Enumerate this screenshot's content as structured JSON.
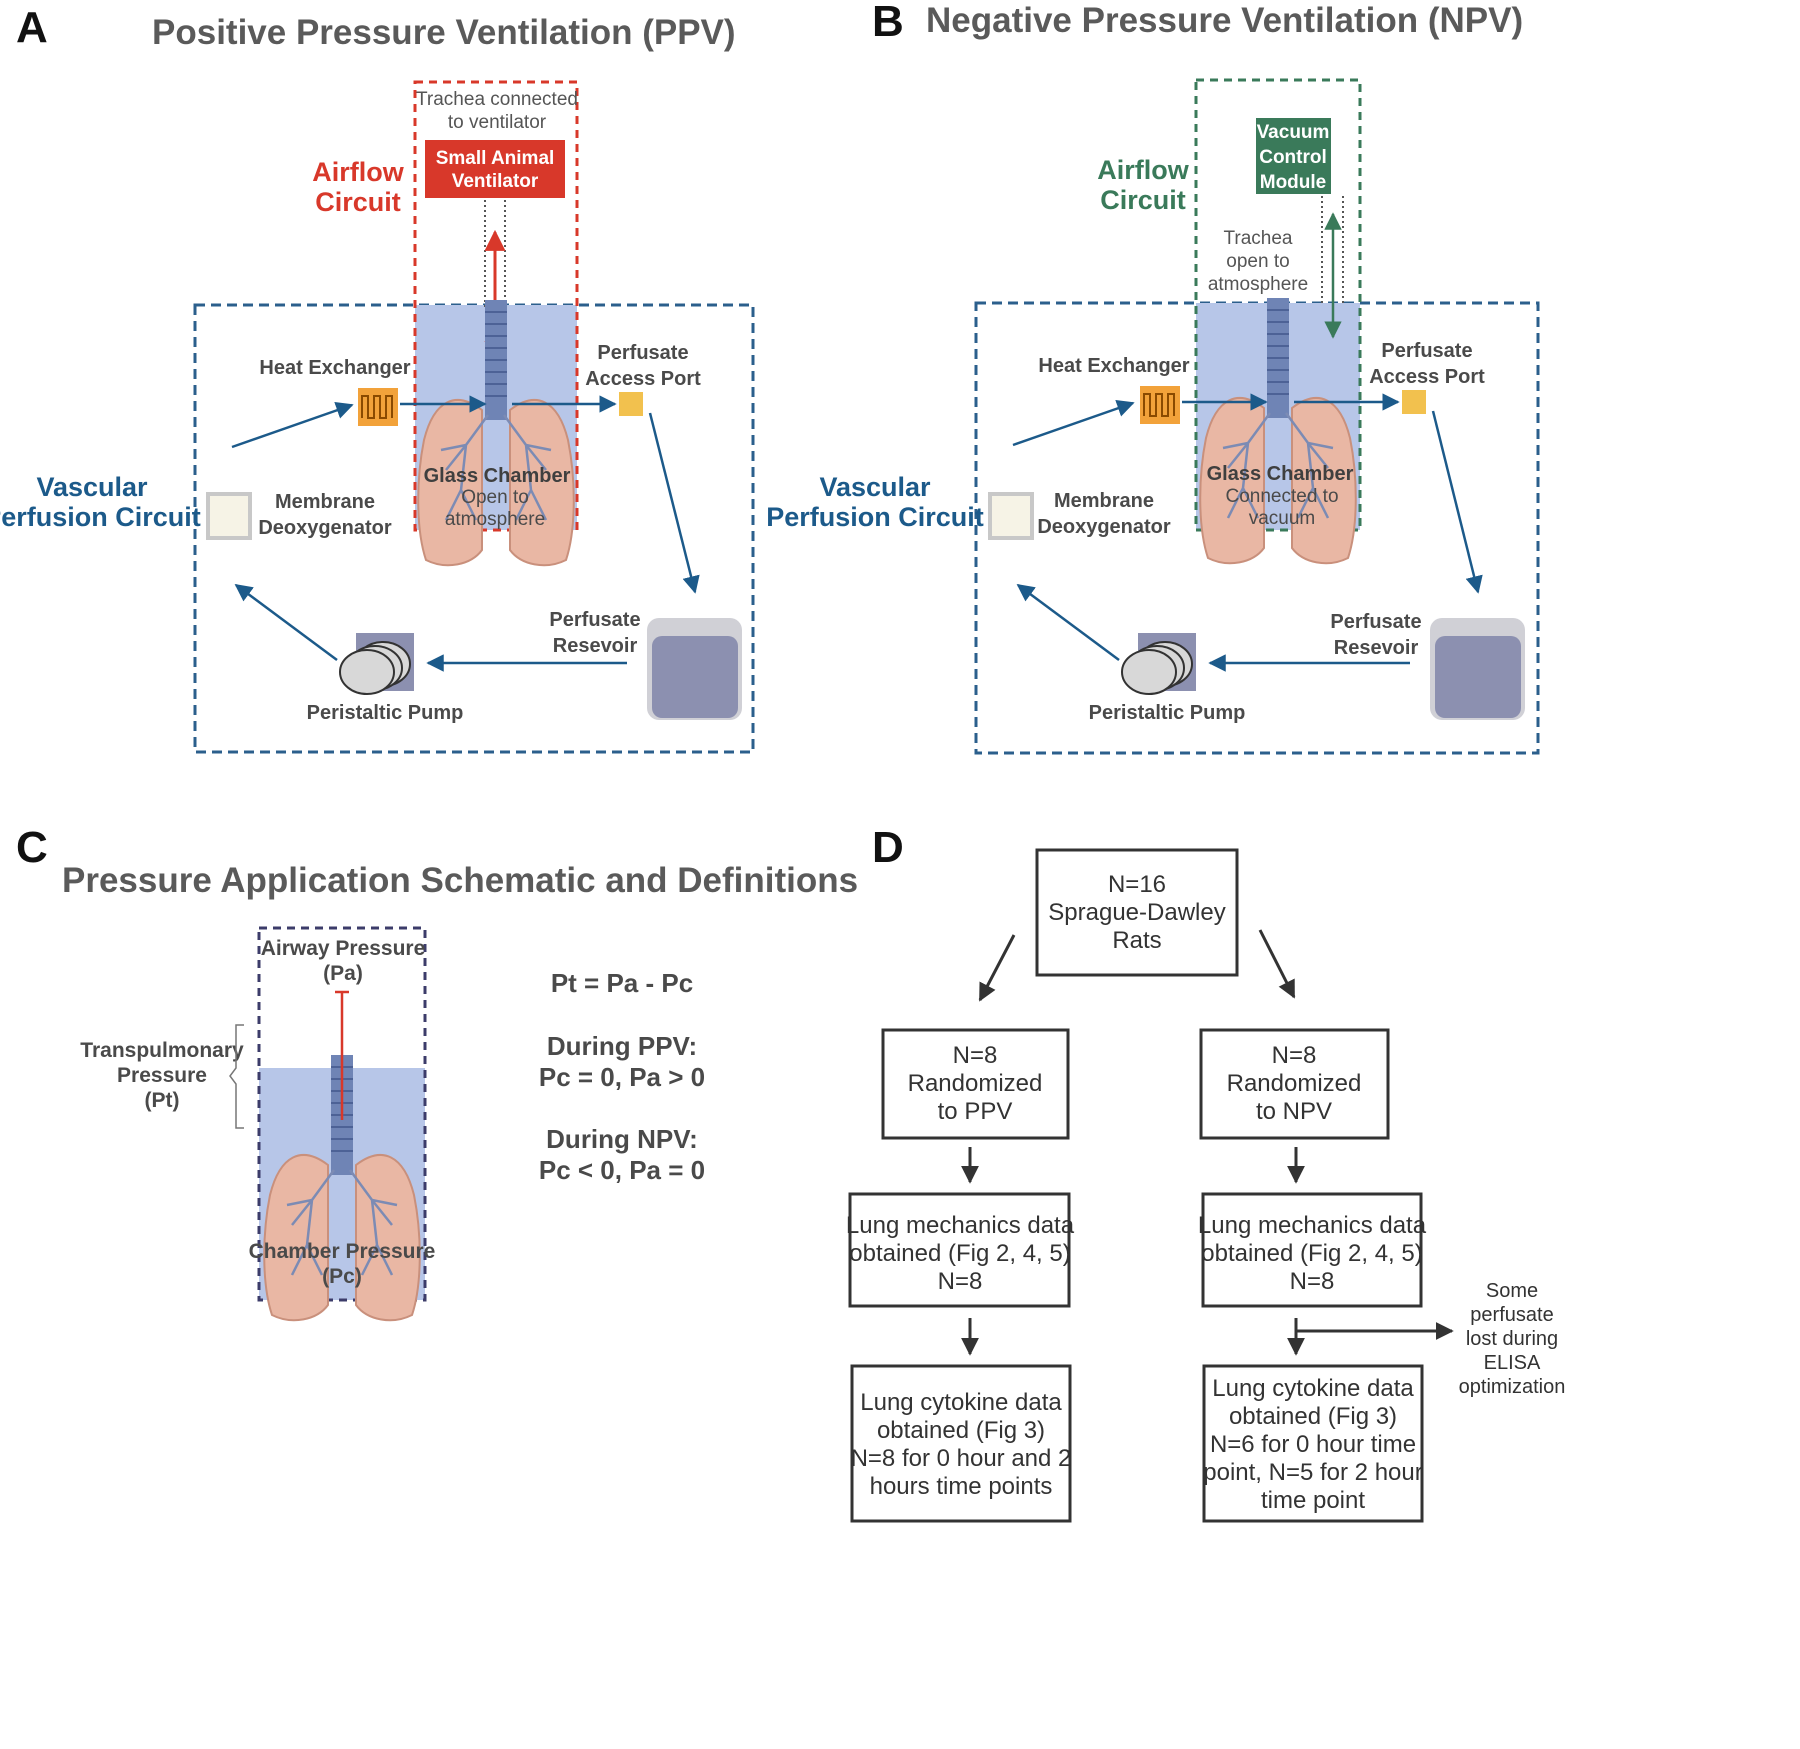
{
  "panelA": {
    "letter": "A",
    "title": "Positive Pressure Ventilation (PPV)",
    "trachea_note": [
      "Trachea connected",
      "to ventilator"
    ],
    "device": [
      "Small Animal",
      "Ventilator"
    ],
    "airflow_label": [
      "Airflow",
      "Circuit"
    ],
    "vascular_label": [
      "Vascular",
      "Perfusion Circuit"
    ],
    "heat_exchanger": "Heat Exchanger",
    "access_port": [
      "Perfusate",
      "Access Port"
    ],
    "chamber_title": "Glass Chamber",
    "chamber_sub": [
      "Open to",
      "atmosphere"
    ],
    "deoxygenator": [
      "Membrane",
      "Deoxygenator"
    ],
    "reservoir": [
      "Perfusate",
      "Resevoir"
    ],
    "pump": "Peristaltic Pump"
  },
  "panelB": {
    "letter": "B",
    "title": "Negative Pressure Ventilation (NPV)",
    "device": [
      "Vacuum",
      "Control",
      "Module"
    ],
    "trachea_note": [
      "Trachea",
      "open to",
      "atmosphere"
    ],
    "airflow_label": [
      "Airflow",
      "Circuit"
    ],
    "vascular_label": [
      "Vascular",
      "Perfusion Circuit"
    ],
    "heat_exchanger": "Heat Exchanger",
    "access_port": [
      "Perfusate",
      "Access Port"
    ],
    "chamber_title": "Glass Chamber",
    "chamber_sub": [
      "Connected to",
      "vacuum"
    ],
    "deoxygenator": [
      "Membrane",
      "Deoxygenator"
    ],
    "reservoir": [
      "Perfusate",
      "Resevoir"
    ],
    "pump": "Peristaltic Pump"
  },
  "panelC": {
    "letter": "C",
    "title": "Pressure Application Schematic and Definitions",
    "airway": [
      "Airway Pressure",
      "(Pa)"
    ],
    "chamber": [
      "Chamber Pressure",
      "(Pc)"
    ],
    "transpulmonary": [
      "Transpulmonary",
      "Pressure",
      "(Pt)"
    ],
    "equation": "Pt = Pa - Pc",
    "ppv_head": "During PPV:",
    "ppv_def": "Pc = 0, Pa > 0",
    "npv_head": "During NPV:",
    "npv_def": "Pc < 0, Pa = 0"
  },
  "panelD": {
    "letter": "D",
    "top": [
      "N=16",
      "Sprague-Dawley",
      "Rats"
    ],
    "ppv_rand": [
      "N=8",
      "Randomized",
      "to PPV"
    ],
    "npv_rand": [
      "N=8",
      "Randomized",
      "to NPV"
    ],
    "ppv_mech": [
      "Lung mechanics data",
      "obtained (Fig 2, 4, 5)",
      "N=8"
    ],
    "npv_mech": [
      "Lung mechanics data",
      "obtained (Fig 2, 4, 5)",
      "N=8"
    ],
    "ppv_cyto": [
      "Lung cytokine data",
      "obtained (Fig 3)",
      "N=8 for 0 hour and 2",
      "hours time points"
    ],
    "npv_cyto": [
      "Lung cytokine data",
      "obtained (Fig 3)",
      "N=6 for 0 hour time",
      "point, N=5 for 2 hour",
      "time point"
    ],
    "side_note": [
      "Some",
      "perfusate",
      "lost during",
      "ELISA",
      "optimization"
    ]
  },
  "colors": {
    "red": "#d8382a",
    "green": "#3a7a5a",
    "blue_dash": "#2b5f8c",
    "chamber_fill": "#b7c6e8",
    "arrow_blue": "#1c5a8a",
    "heat_orange": "#f2a23a",
    "port_yellow": "#f2c14e",
    "reservoir": "#8c90b0"
  }
}
